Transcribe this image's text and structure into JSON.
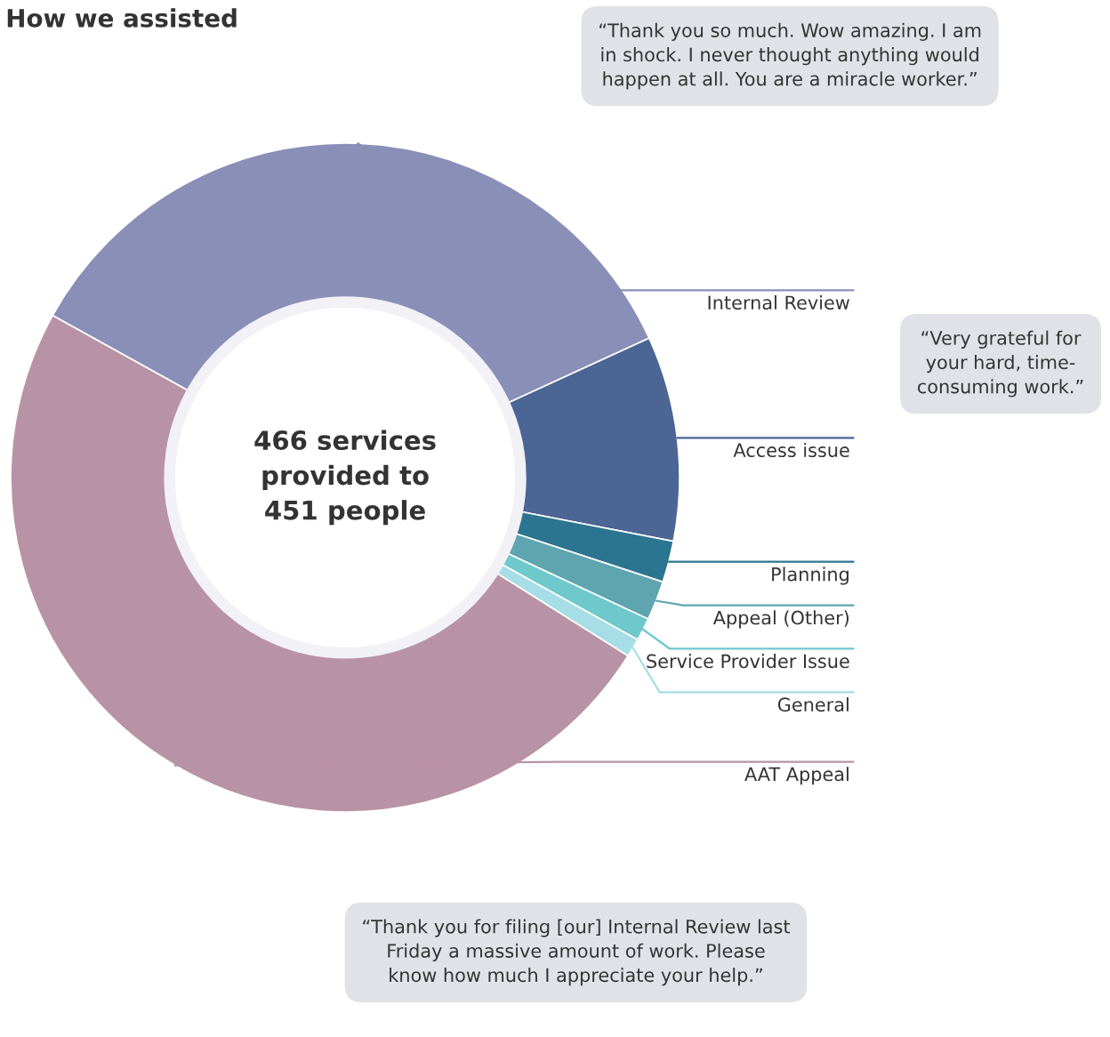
{
  "chart_data": {
    "type": "donut",
    "title": "How we assisted",
    "categories": [
      "Internal Review",
      "Access issue",
      "Planning",
      "Appeal (Other)",
      "Service Provider Issue",
      "General",
      "AAT Appeal"
    ],
    "values": [
      35.1,
      9.9,
      2.0,
      1.9,
      1.1,
      0.9,
      49.1
    ],
    "colors": [
      "#8a8fb8",
      "#4b6594",
      "#2c7590",
      "#5ea5b0",
      "#6fc8cc",
      "#a6dde6",
      "#b893a5"
    ],
    "annotations": [
      "466 services\nprovided to\n451 people",
      "“Thank you so much. Wow amazing. I am\nin shock. I never thought anything would\nhappen at all. You are a miracle worker.”",
      "“Very grateful for\nyour hard, time-\nconsuming work.”",
      "“Thank you for filing [our] Internal Review last\nFriday a massive amount of work. Please\nknow how much I appreciate your help.”"
    ]
  }
}
